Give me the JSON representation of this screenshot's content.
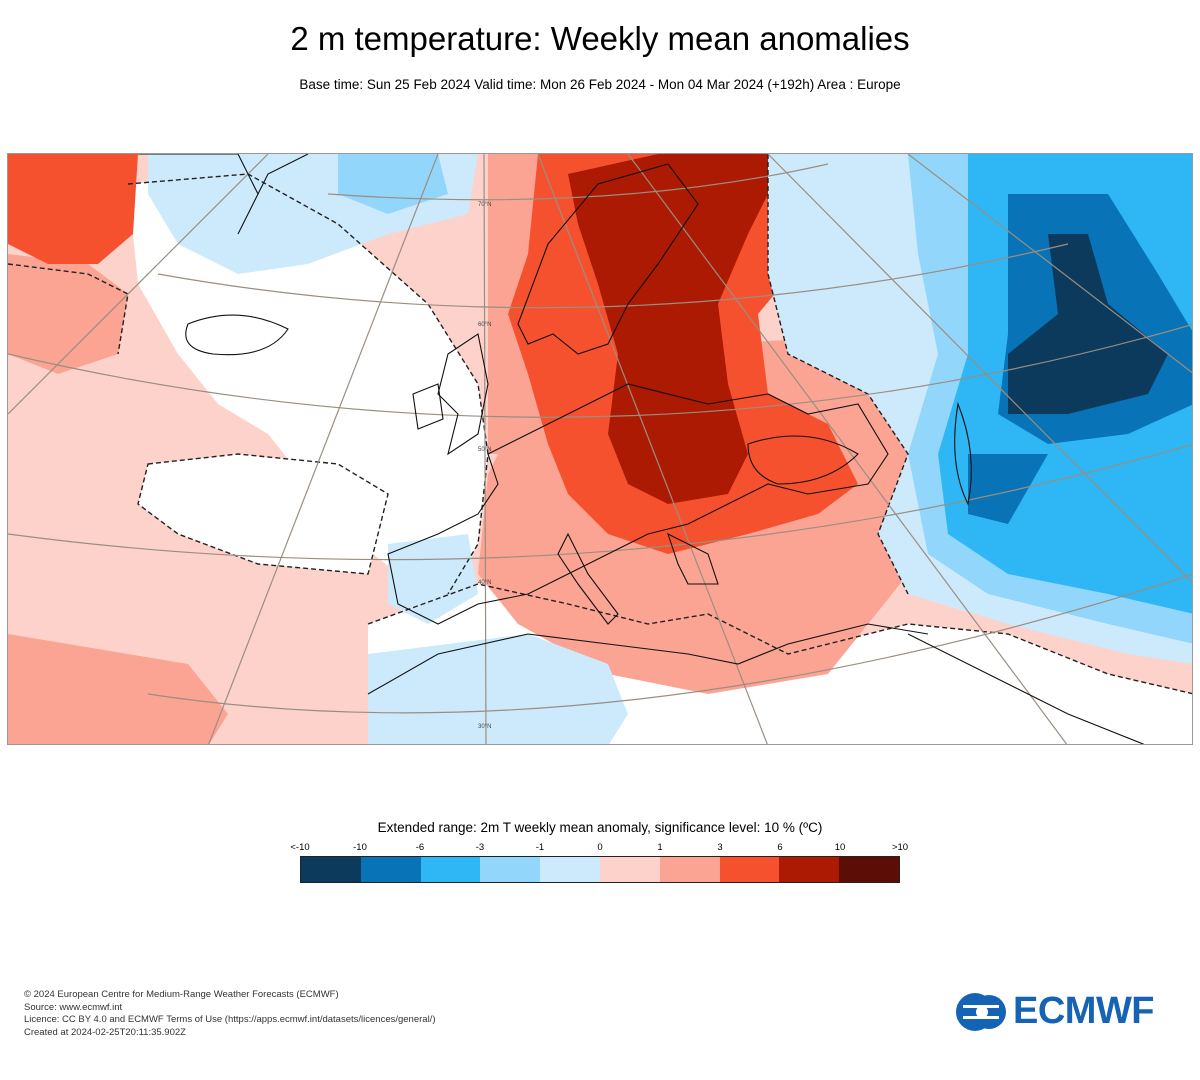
{
  "header": {
    "title": "2 m temperature: Weekly mean anomalies",
    "subtitle": "Base time: Sun 25 Feb 2024 Valid time: Mon 26 Feb 2024 - Mon 04 Mar 2024 (+192h) Area : Europe"
  },
  "map": {
    "lat_labels": [
      "70°N",
      "60°N",
      "50°N",
      "40°N",
      "30°N"
    ]
  },
  "legend": {
    "title": "Extended range: 2m T weekly mean anomaly, significance level: 10 % (ºC)",
    "tick_labels": [
      "<-10",
      "-10",
      "-6",
      "-3",
      "-1",
      "0",
      "1",
      "3",
      "6",
      "10",
      ">10"
    ],
    "colors": [
      "#0b3a5c",
      "#0874b7",
      "#2fb6f4",
      "#93d6fb",
      "#cdeafd",
      "#fdd2cb",
      "#fba494",
      "#f6512e",
      "#ac1a04",
      "#5c0d05"
    ]
  },
  "credits": {
    "lines": [
      "© 2024 European Centre for Medium-Range Weather Forecasts (ECMWF)",
      "Source: www.ecmwf.int",
      "Licence: CC BY 4.0 and ECMWF Terms of Use (https://apps.ecmwf.int/datasets/licences/general/)",
      "Created at 2024-02-25T20:11:35.902Z"
    ]
  },
  "logo": {
    "text": "ECMWF"
  }
}
